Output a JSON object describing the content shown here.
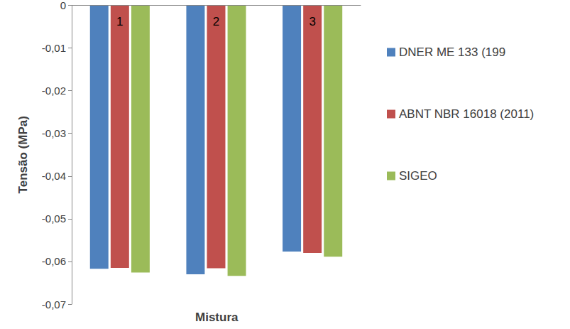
{
  "chart_data": {
    "type": "bar",
    "x_label": "Mistura",
    "y_label": "Tensão (MPa)",
    "categories": [
      "1",
      "2",
      "3"
    ],
    "series": [
      {
        "name": "DNER ME 133 (199",
        "color": "#4f81bd",
        "values": [
          -0.0617,
          -0.063,
          -0.0577
        ]
      },
      {
        "name": "ABNT NBR 16018 (2011)",
        "color": "#c0504d",
        "values": [
          -0.0615,
          -0.0616,
          -0.058
        ]
      },
      {
        "name": "SIGEO",
        "color": "#9bbb59",
        "values": [
          -0.0626,
          -0.0634,
          -0.0589
        ]
      }
    ],
    "ylim": [
      -0.07,
      0
    ],
    "yticks": [
      {
        "value": -0.07,
        "label": "-0,07"
      },
      {
        "value": -0.06,
        "label": "-0,06"
      },
      {
        "value": -0.05,
        "label": "-0,05"
      },
      {
        "value": -0.04,
        "label": "-0,04"
      },
      {
        "value": -0.03,
        "label": "-0,03"
      },
      {
        "value": -0.02,
        "label": "-0,02"
      },
      {
        "value": -0.01,
        "label": "-0,01"
      },
      0
    ],
    "grid": false,
    "legend": "right"
  }
}
